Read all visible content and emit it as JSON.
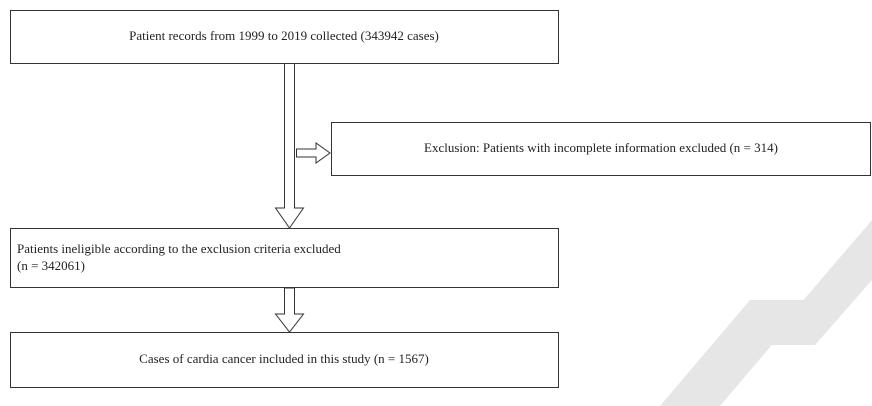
{
  "nodes": [
    {
      "label": "Patient records from 1999 to 2019 collected (343942 cases)"
    },
    {
      "label": "Exclusion: Patients with incomplete information excluded (n = 314)"
    },
    {
      "lines": [
        "Patients ineligible according to the exclusion criteria excluded",
        "(n = 342061)"
      ]
    },
    {
      "label": "Cases of cardia cancer included in this study (n = 1567)"
    }
  ]
}
